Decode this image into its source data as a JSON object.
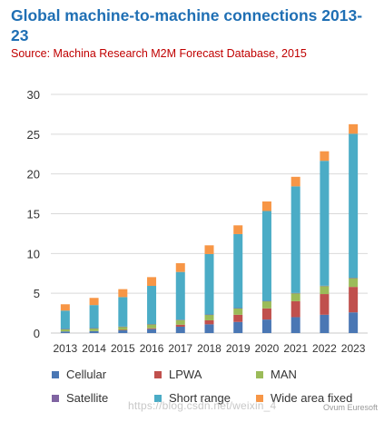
{
  "title": "Global machine-to-machine connections 2013-23",
  "subtitle": "Source: Machina Research M2M Forecast Database, 2015",
  "watermark": "https://blog.csdn.net/weixin_4",
  "brand": "Ovum Euresoft",
  "chart_data": {
    "type": "bar",
    "stacked": true,
    "title": "Global machine-to-machine connections 2013-23",
    "subtitle": "Source: Machina Research M2M Forecast Database, 2015",
    "xlabel": "",
    "ylabel": "",
    "ylim": [
      0,
      30
    ],
    "yticks": [
      0,
      5,
      10,
      15,
      20,
      25,
      30
    ],
    "grid": true,
    "legend_position": "bottom",
    "categories": [
      "2013",
      "2014",
      "2015",
      "2016",
      "2017",
      "2018",
      "2019",
      "2020",
      "2021",
      "2022",
      "2023"
    ],
    "series": [
      {
        "name": "Cellular",
        "color": "#4a77b4",
        "values": [
          0.2,
          0.25,
          0.35,
          0.5,
          0.8,
          1.1,
          1.4,
          1.7,
          2.0,
          2.3,
          2.6
        ]
      },
      {
        "name": "LPWA",
        "color": "#c0504d",
        "values": [
          0.0,
          0.0,
          0.05,
          0.1,
          0.25,
          0.5,
          0.9,
          1.4,
          2.0,
          2.6,
          3.2
        ]
      },
      {
        "name": "MAN",
        "color": "#9bbb59",
        "values": [
          0.3,
          0.35,
          0.4,
          0.5,
          0.6,
          0.7,
          0.8,
          0.9,
          1.0,
          1.0,
          1.1
        ]
      },
      {
        "name": "Satellite",
        "color": "#8064a2",
        "values": [
          0.02,
          0.02,
          0.02,
          0.03,
          0.03,
          0.03,
          0.04,
          0.04,
          0.04,
          0.05,
          0.05
        ]
      },
      {
        "name": "Short range",
        "color": "#4bacc6",
        "values": [
          2.3,
          2.9,
          3.7,
          4.8,
          6.0,
          7.6,
          9.3,
          11.3,
          13.4,
          15.7,
          18.1
        ]
      },
      {
        "name": "Wide area fixed",
        "color": "#f79646",
        "values": [
          0.8,
          0.9,
          1.0,
          1.1,
          1.1,
          1.1,
          1.1,
          1.2,
          1.2,
          1.2,
          1.2
        ]
      }
    ]
  }
}
